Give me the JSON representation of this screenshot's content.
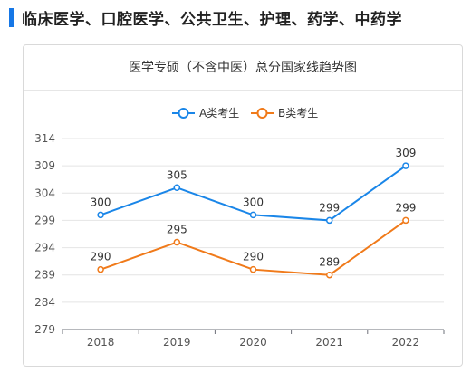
{
  "header": {
    "title": "临床医学、口腔医学、公共卫生、护理、药学、中药学"
  },
  "chart_data": {
    "type": "line",
    "title": "医学专硕（不含中医）总分国家线趋势图",
    "categories": [
      "2018",
      "2019",
      "2020",
      "2021",
      "2022"
    ],
    "series": [
      {
        "name": "A类考生",
        "values": [
          300,
          305,
          300,
          299,
          309
        ],
        "color": "#1a86e8"
      },
      {
        "name": "B类考生",
        "values": [
          290,
          295,
          290,
          289,
          299
        ],
        "color": "#f07a1a"
      }
    ],
    "yticks": [
      279,
      284,
      289,
      294,
      299,
      304,
      309,
      314
    ],
    "ylim": [
      279,
      314
    ],
    "xlabel": "",
    "ylabel": "",
    "grid": true,
    "legend_position": "top-center"
  }
}
